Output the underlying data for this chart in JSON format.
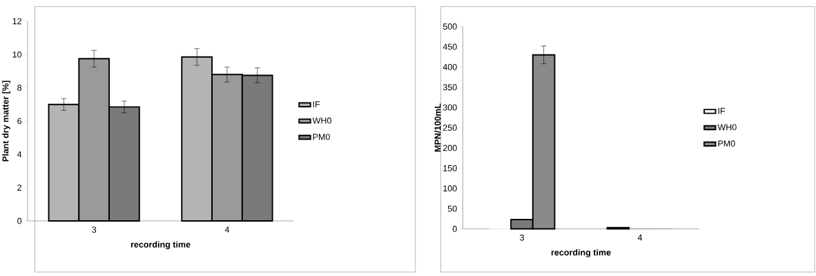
{
  "chart_data": [
    {
      "type": "bar",
      "categories": [
        "3",
        "4"
      ],
      "xlabel": "recording time",
      "ylabel": "Plant dry matter [%]",
      "ylim": [
        0,
        12
      ],
      "yticks": [
        0,
        2,
        4,
        6,
        8,
        10,
        12
      ],
      "legend": "right",
      "series": [
        {
          "name": "IF",
          "color": "#b4b4b4",
          "values": [
            7.0,
            9.85
          ],
          "errors": [
            0.35,
            0.5
          ]
        },
        {
          "name": "WH0",
          "color": "#9a9a9a",
          "values": [
            9.75,
            8.8
          ],
          "errors": [
            0.5,
            0.45
          ]
        },
        {
          "name": "PM0",
          "color": "#7a7a7a",
          "values": [
            6.85,
            8.75
          ],
          "errors": [
            0.35,
            0.45
          ]
        }
      ]
    },
    {
      "type": "bar",
      "categories": [
        "3",
        "4"
      ],
      "xlabel": "recording time",
      "ylabel": "MPN/100mL",
      "ylim": [
        0,
        500
      ],
      "yticks": [
        0,
        50,
        100,
        150,
        200,
        250,
        300,
        350,
        400,
        450,
        500
      ],
      "legend": "right",
      "series": [
        {
          "name": "IF",
          "color": "#ffffff",
          "values": [
            0,
            3
          ]
        },
        {
          "name": "WH0",
          "color": "#7a7a7a",
          "values": [
            23,
            0
          ]
        },
        {
          "name": "PM0",
          "color": "#8a8a8a",
          "values": [
            430,
            0
          ],
          "errors": [
            22,
            null
          ]
        }
      ]
    }
  ]
}
